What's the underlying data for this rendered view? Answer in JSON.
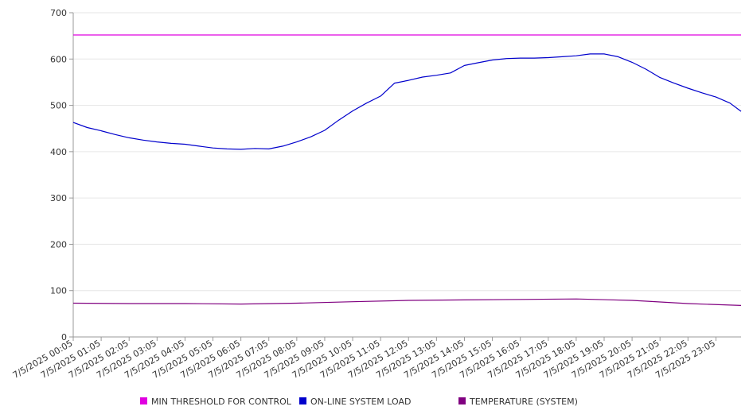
{
  "chart_data": {
    "type": "line",
    "title": "",
    "xlabel": "",
    "ylabel": "",
    "ylim": [
      0,
      700
    ],
    "yticks": [
      0,
      100,
      200,
      300,
      400,
      500,
      600,
      700
    ],
    "xlim": [
      "7/5/2025 00:05",
      "7/5/2025 23:59"
    ],
    "x_tick_labels": [
      "7/5/2025 00:05",
      "7/5/2025 01:05",
      "7/5/2025 02:05",
      "7/5/2025 03:05",
      "7/5/2025 04:05",
      "7/5/2025 05:05",
      "7/5/2025 06:05",
      "7/5/2025 07:05",
      "7/5/2025 08:05",
      "7/5/2025 09:05",
      "7/5/2025 10:05",
      "7/5/2025 11:05",
      "7/5/2025 12:05",
      "7/5/2025 13:05",
      "7/5/2025 14:05",
      "7/5/2025 15:05",
      "7/5/2025 16:05",
      "7/5/2025 17:05",
      "7/5/2025 18:05",
      "7/5/2025 19:05",
      "7/5/2025 20:05",
      "7/5/2025 21:05",
      "7/5/2025 22:05",
      "7/5/2025 23:05"
    ],
    "grid": "horizontal",
    "legend_position": "bottom",
    "series": [
      {
        "name": "MIN THRESHOLD FOR CONTROL",
        "color": "#e000e0",
        "x": [
          "7/5/2025 00:05",
          "7/5/2025 23:59"
        ],
        "values": [
          652,
          652
        ]
      },
      {
        "name": "ON-LINE SYSTEM LOAD",
        "color": "#0000cc",
        "x": [
          "7/5/2025 00:05",
          "7/5/2025 00:35",
          "7/5/2025 01:05",
          "7/5/2025 01:35",
          "7/5/2025 02:05",
          "7/5/2025 02:35",
          "7/5/2025 03:05",
          "7/5/2025 03:35",
          "7/5/2025 04:05",
          "7/5/2025 04:35",
          "7/5/2025 05:05",
          "7/5/2025 05:35",
          "7/5/2025 06:05",
          "7/5/2025 06:35",
          "7/5/2025 07:05",
          "7/5/2025 07:35",
          "7/5/2025 08:05",
          "7/5/2025 08:35",
          "7/5/2025 09:05",
          "7/5/2025 09:35",
          "7/5/2025 10:05",
          "7/5/2025 10:35",
          "7/5/2025 11:05",
          "7/5/2025 11:35",
          "7/5/2025 12:05",
          "7/5/2025 12:35",
          "7/5/2025 13:05",
          "7/5/2025 13:35",
          "7/5/2025 14:05",
          "7/5/2025 14:35",
          "7/5/2025 15:05",
          "7/5/2025 15:35",
          "7/5/2025 16:05",
          "7/5/2025 16:35",
          "7/5/2025 17:05",
          "7/5/2025 17:35",
          "7/5/2025 18:05",
          "7/5/2025 18:35",
          "7/5/2025 19:05",
          "7/5/2025 19:35",
          "7/5/2025 20:05",
          "7/5/2025 20:35",
          "7/5/2025 21:05",
          "7/5/2025 21:35",
          "7/5/2025 22:05",
          "7/5/2025 22:35",
          "7/5/2025 23:05",
          "7/5/2025 23:35",
          "7/5/2025 23:59"
        ],
        "values": [
          463,
          452,
          445,
          437,
          430,
          425,
          421,
          418,
          416,
          412,
          408,
          406,
          405,
          407,
          406,
          412,
          421,
          432,
          446,
          468,
          488,
          505,
          520,
          548,
          554,
          561,
          565,
          570,
          586,
          592,
          598,
          601,
          602,
          602,
          603,
          605,
          607,
          611,
          611,
          605,
          593,
          578,
          560,
          548,
          537,
          527,
          518,
          505,
          487
        ]
      },
      {
        "name": "TEMPERATURE (SYSTEM)",
        "color": "#800080",
        "x": [
          "7/5/2025 00:05",
          "7/5/2025 02:05",
          "7/5/2025 04:05",
          "7/5/2025 06:05",
          "7/5/2025 08:05",
          "7/5/2025 10:05",
          "7/5/2025 12:05",
          "7/5/2025 14:05",
          "7/5/2025 16:05",
          "7/5/2025 18:05",
          "7/5/2025 20:05",
          "7/5/2025 22:05",
          "7/5/2025 23:59"
        ],
        "values": [
          73,
          72,
          72,
          71,
          73,
          76,
          79,
          80,
          81,
          82,
          79,
          72,
          68
        ]
      }
    ]
  }
}
